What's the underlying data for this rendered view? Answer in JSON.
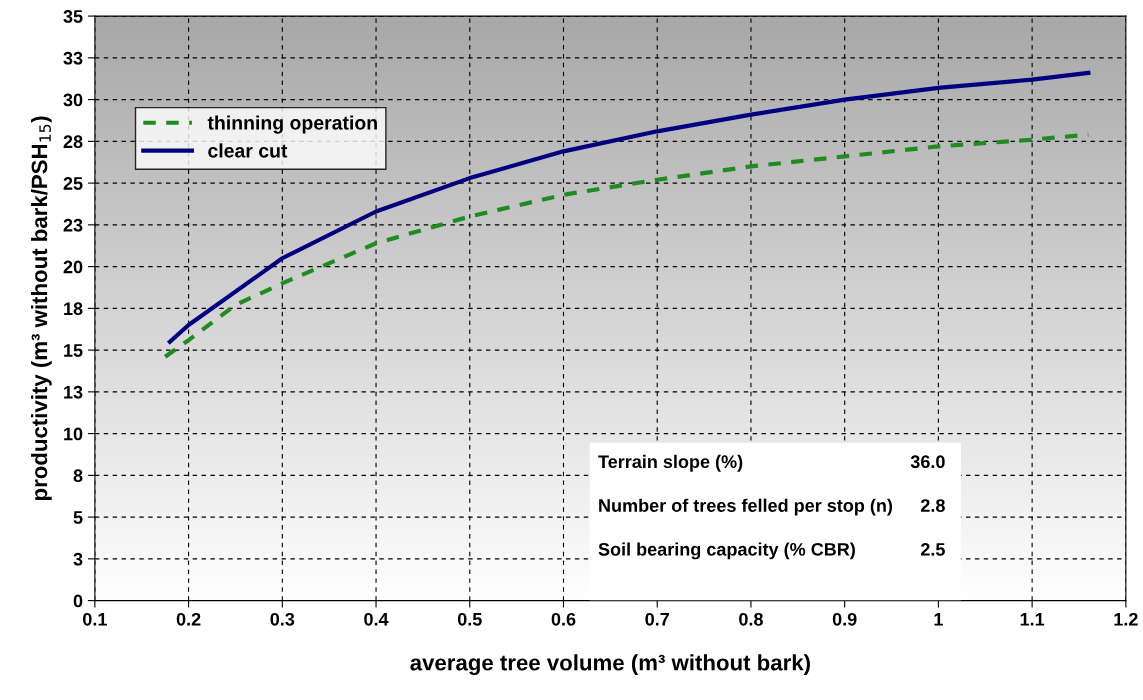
{
  "chart_data": {
    "type": "line",
    "xlabel": "average tree volume (m³ without bark)",
    "ylabel": "productivity (m³ without bark/PSH$_{15}$)",
    "series": [
      {
        "name": "thinning operation",
        "color": "#1e8c1e",
        "line_style": "dashed",
        "x": [
          0.175,
          0.2,
          0.25,
          0.3,
          0.4,
          0.5,
          0.6,
          0.7,
          0.8,
          0.9,
          1.0,
          1.1,
          1.16
        ],
        "values": [
          14.6,
          15.6,
          17.7,
          19.0,
          21.4,
          23.0,
          24.3,
          25.2,
          26.0,
          26.6,
          27.2,
          27.6,
          27.9
        ]
      },
      {
        "name": "clear cut",
        "color": "#000080",
        "line_style": "solid",
        "x": [
          0.18,
          0.2,
          0.3,
          0.4,
          0.5,
          0.6,
          0.7,
          0.8,
          0.9,
          1.0,
          1.1,
          1.16
        ],
        "values": [
          15.5,
          16.5,
          20.5,
          23.3,
          25.3,
          26.9,
          28.1,
          29.1,
          30.0,
          30.7,
          31.2,
          31.6
        ]
      }
    ],
    "xlim": [
      0.1,
      1.2
    ],
    "xticks": [
      {
        "value": 0.1,
        "label": "0.1"
      },
      {
        "value": 0.2,
        "label": "0.2"
      },
      {
        "value": 0.3,
        "label": "0.3"
      },
      {
        "value": 0.4,
        "label": "0.4"
      },
      {
        "value": 0.5,
        "label": "0.5"
      },
      {
        "value": 0.6,
        "label": "0.6"
      },
      {
        "value": 0.7,
        "label": "0.7"
      },
      {
        "value": 0.8,
        "label": "0.8"
      },
      {
        "value": 0.9,
        "label": "0.9"
      },
      1,
      {
        "value": 1.1,
        "label": "1.1"
      },
      {
        "value": 1.2,
        "label": "1.2"
      }
    ],
    "ylim": [
      0,
      35
    ],
    "yticks": [
      0,
      {
        "value": 2.5,
        "label": "3"
      },
      5,
      {
        "value": 7.5,
        "label": "8"
      },
      10,
      {
        "value": 12.5,
        "label": "13"
      },
      15,
      {
        "value": 17.5,
        "label": "18"
      },
      20,
      {
        "value": 22.5,
        "label": "23"
      },
      25,
      {
        "value": 27.5,
        "label": "28"
      },
      30,
      {
        "value": 32.5,
        "label": "33"
      },
      35
    ],
    "grid": true,
    "legend": "top left",
    "annotations": [
      "Terrain slope (%)",
      "36.0",
      "Number of trees felled per stop (n)",
      "2.8",
      "Soil bearing capacity (% CBR)",
      "2.5"
    ]
  }
}
